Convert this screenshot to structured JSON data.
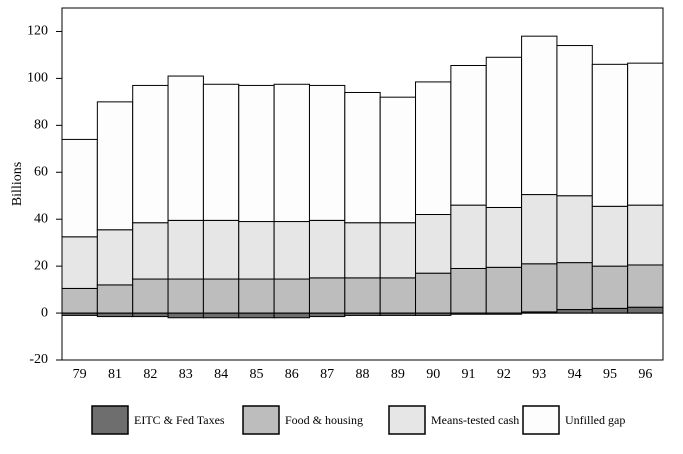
{
  "chart_data": {
    "type": "stacked_bar",
    "y_label": "Billions",
    "categories": [
      "79",
      "81",
      "82",
      "83",
      "84",
      "85",
      "86",
      "87",
      "88",
      "89",
      "90",
      "91",
      "92",
      "93",
      "94",
      "95",
      "96"
    ],
    "series": [
      {
        "name": "EITC & Fed Taxes",
        "color": "#6e6e6e",
        "values": [
          -1,
          -1.5,
          -1.5,
          -2,
          -2,
          -2,
          -2,
          -1.5,
          -1,
          -1,
          -1,
          -0.5,
          -0.5,
          0.5,
          1.5,
          2,
          2.5
        ]
      },
      {
        "name": "Food & housing",
        "color": "#bdbdbd",
        "values": [
          10.5,
          12,
          14.5,
          14.5,
          14.5,
          14.5,
          14.5,
          15,
          15,
          15,
          17,
          19,
          19.5,
          20.5,
          20,
          18,
          18
        ]
      },
      {
        "name": "Means-tested cash",
        "color": "#e6e6e6",
        "values": [
          22,
          23.5,
          24,
          25,
          25,
          24.5,
          24.5,
          24.5,
          23.5,
          23.5,
          25,
          27,
          25.5,
          29.5,
          28.5,
          25.5,
          25.5
        ]
      },
      {
        "name": "Unfilled gap",
        "color": "#fdfdfd",
        "values": [
          41.5,
          54.5,
          58.5,
          61.5,
          58,
          58,
          58.5,
          57.5,
          55.5,
          53.5,
          56.5,
          59.5,
          64,
          67.5,
          64,
          60.5,
          60.5
        ]
      }
    ],
    "ylim": [
      -20,
      130
    ],
    "yticks": [
      -20,
      0,
      20,
      40,
      60,
      80,
      100,
      120
    ],
    "grid": false
  }
}
